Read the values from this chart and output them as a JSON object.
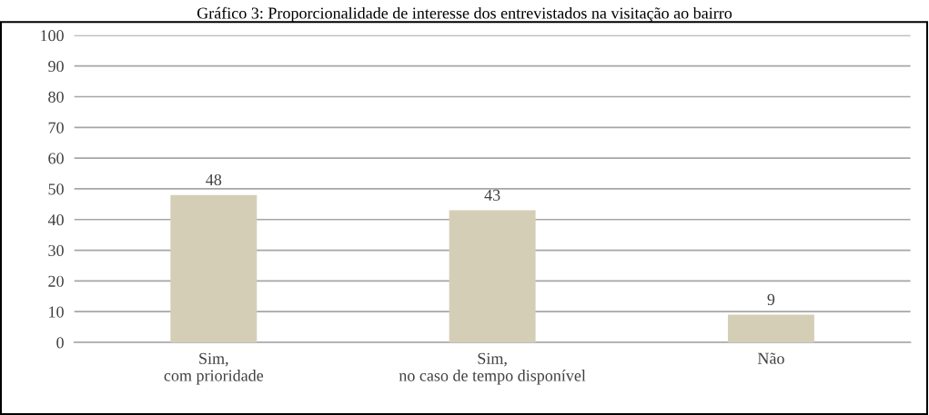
{
  "chart_data": {
    "type": "bar",
    "title": "Gráfico 3: Proporcionalidade de interesse dos entrevistados na visitação ao bairro",
    "categories": [
      "Sim,\ncom prioridade",
      "Sim,\nno caso de tempo disponível",
      "Não"
    ],
    "values": [
      48,
      43,
      9
    ],
    "color": "#d5ceb6",
    "ylim": [
      0,
      100
    ],
    "yticks": [
      0,
      10,
      20,
      30,
      40,
      50,
      60,
      70,
      80,
      90,
      100
    ],
    "grid": "y",
    "data_labels": true
  }
}
